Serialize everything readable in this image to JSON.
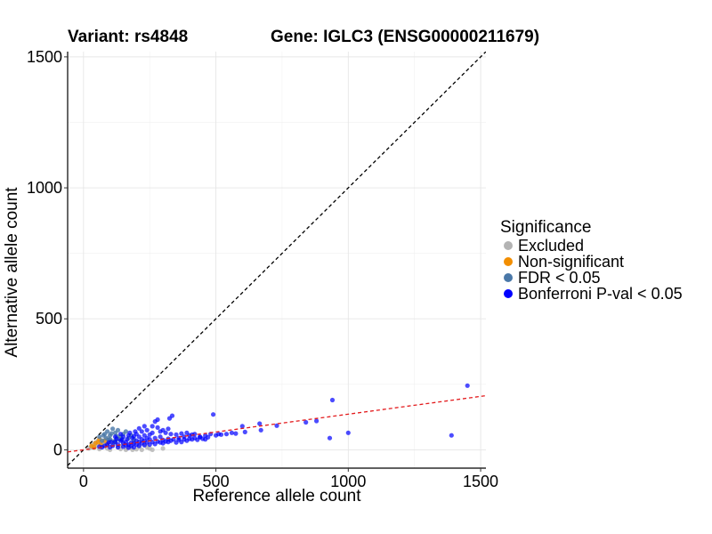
{
  "chart_data": {
    "type": "scatter",
    "title_left": "Variant: rs4848",
    "title_right": "Gene: IGLC3 (ENSG00000211679)",
    "xlabel": "Reference allele count",
    "ylabel": "Alternative allele count",
    "xlim": [
      -60,
      1520
    ],
    "ylim": [
      -70,
      1520
    ],
    "xticks": [
      0,
      500,
      1000,
      1500
    ],
    "yticks": [
      0,
      500,
      1000,
      1500
    ],
    "grid": true,
    "legend": {
      "title": "Significance",
      "position": "right",
      "entries": [
        {
          "label": "Excluded",
          "color": "#b3b3b3"
        },
        {
          "label": "Non-significant",
          "color": "#f28e00"
        },
        {
          "label": "FDR < 0.05",
          "color": "#4a78a8"
        },
        {
          "label": "Bonferroni P-val < 0.05",
          "color": "#0000ff"
        }
      ]
    },
    "reference_lines": [
      {
        "name": "identity",
        "slope": 1,
        "intercept": 0,
        "color": "#000000",
        "style": "dashed"
      },
      {
        "name": "fit",
        "slope": 0.136,
        "intercept": 0,
        "color": "#e31a1c",
        "style": "dashed"
      }
    ],
    "series": [
      {
        "name": "Excluded",
        "color": "#b3b3b3",
        "points": [
          [
            20,
            5
          ],
          [
            30,
            10
          ],
          [
            40,
            8
          ],
          [
            50,
            15
          ],
          [
            60,
            3
          ],
          [
            70,
            12
          ],
          [
            80,
            20
          ],
          [
            90,
            5
          ],
          [
            100,
            0
          ],
          [
            110,
            18
          ],
          [
            120,
            25
          ],
          [
            130,
            10
          ],
          [
            140,
            3
          ],
          [
            150,
            22
          ],
          [
            160,
            0
          ],
          [
            170,
            15
          ],
          [
            180,
            8
          ],
          [
            190,
            28
          ],
          [
            200,
            2
          ],
          [
            210,
            12
          ],
          [
            220,
            0
          ],
          [
            230,
            20
          ],
          [
            250,
            5
          ],
          [
            260,
            0
          ],
          [
            300,
            5
          ],
          [
            35,
            20
          ],
          [
            45,
            28
          ],
          [
            55,
            35
          ],
          [
            65,
            30
          ],
          [
            85,
            40
          ],
          [
            95,
            45
          ],
          [
            105,
            35
          ],
          [
            125,
            45
          ],
          [
            75,
            25
          ],
          [
            145,
            15
          ],
          [
            165,
            5
          ],
          [
            185,
            0
          ],
          [
            240,
            10
          ]
        ]
      },
      {
        "name": "Non-significant",
        "color": "#f28e00",
        "points": [
          [
            30,
            15
          ],
          [
            45,
            25
          ],
          [
            55,
            30
          ],
          [
            65,
            20
          ],
          [
            80,
            35
          ],
          [
            90,
            22
          ],
          [
            60,
            40
          ],
          [
            40,
            10
          ]
        ]
      },
      {
        "name": "FDR < 0.05",
        "color": "#4a78a8",
        "points": [
          [
            60,
            50
          ],
          [
            80,
            60
          ],
          [
            90,
            70
          ],
          [
            100,
            55
          ],
          [
            110,
            80
          ],
          [
            120,
            65
          ],
          [
            130,
            75
          ],
          [
            140,
            50
          ],
          [
            150,
            60
          ],
          [
            160,
            70
          ],
          [
            170,
            45
          ],
          [
            180,
            55
          ],
          [
            190,
            40
          ],
          [
            100,
            40
          ],
          [
            120,
            35
          ],
          [
            75,
            55
          ],
          [
            85,
            45
          ],
          [
            95,
            38
          ],
          [
            115,
            30
          ],
          [
            135,
            40
          ],
          [
            70,
            35
          ],
          [
            105,
            62
          ],
          [
            125,
            52
          ],
          [
            145,
            42
          ]
        ]
      },
      {
        "name": "Bonferroni P-val < 0.05",
        "color": "#0000ff",
        "points": [
          [
            1450,
            245
          ],
          [
            940,
            190
          ],
          [
            335,
            130
          ],
          [
            325,
            120
          ],
          [
            490,
            135
          ],
          [
            280,
            115
          ],
          [
            270,
            108
          ],
          [
            665,
            100
          ],
          [
            730,
            92
          ],
          [
            880,
            110
          ],
          [
            840,
            105
          ],
          [
            600,
            90
          ],
          [
            1000,
            65
          ],
          [
            930,
            45
          ],
          [
            1390,
            55
          ],
          [
            670,
            75
          ],
          [
            560,
            65
          ],
          [
            510,
            60
          ],
          [
            480,
            60
          ],
          [
            460,
            55
          ],
          [
            440,
            50
          ],
          [
            420,
            60
          ],
          [
            400,
            55
          ],
          [
            380,
            50
          ],
          [
            360,
            45
          ],
          [
            340,
            40
          ],
          [
            320,
            42
          ],
          [
            300,
            38
          ],
          [
            290,
            50
          ],
          [
            270,
            45
          ],
          [
            250,
            40
          ],
          [
            230,
            35
          ],
          [
            210,
            30
          ],
          [
            190,
            25
          ],
          [
            170,
            20
          ],
          [
            150,
            25
          ],
          [
            130,
            20
          ],
          [
            110,
            15
          ],
          [
            100,
            10
          ],
          [
            90,
            20
          ],
          [
            80,
            15
          ],
          [
            70,
            10
          ],
          [
            60,
            12
          ],
          [
            120,
            30
          ],
          [
            140,
            35
          ],
          [
            160,
            30
          ],
          [
            180,
            28
          ],
          [
            200,
            35
          ],
          [
            220,
            40
          ],
          [
            240,
            45
          ],
          [
            260,
            30
          ],
          [
            280,
            32
          ],
          [
            300,
            25
          ],
          [
            320,
            30
          ],
          [
            350,
            28
          ],
          [
            370,
            30
          ],
          [
            390,
            35
          ],
          [
            410,
            40
          ],
          [
            430,
            38
          ],
          [
            450,
            42
          ],
          [
            470,
            48
          ],
          [
            500,
            55
          ],
          [
            520,
            58
          ],
          [
            540,
            60
          ],
          [
            575,
            62
          ],
          [
            610,
            68
          ],
          [
            200,
            60
          ],
          [
            220,
            70
          ],
          [
            240,
            75
          ],
          [
            260,
            65
          ],
          [
            210,
            50
          ],
          [
            230,
            55
          ],
          [
            250,
            58
          ],
          [
            185,
            45
          ],
          [
            165,
            40
          ],
          [
            145,
            38
          ],
          [
            125,
            42
          ],
          [
            105,
            30
          ],
          [
            95,
            28
          ],
          [
            130,
            10
          ],
          [
            150,
            12
          ],
          [
            170,
            8
          ],
          [
            190,
            10
          ],
          [
            210,
            15
          ],
          [
            230,
            18
          ],
          [
            250,
            20
          ],
          [
            270,
            22
          ],
          [
            290,
            28
          ],
          [
            310,
            32
          ],
          [
            330,
            35
          ],
          [
            360,
            38
          ],
          [
            380,
            40
          ],
          [
            400,
            42
          ],
          [
            420,
            45
          ],
          [
            440,
            48
          ],
          [
            460,
            40
          ],
          [
            150,
            50
          ],
          [
            170,
            55
          ],
          [
            190,
            52
          ],
          [
            175,
            65
          ],
          [
            195,
            70
          ],
          [
            140,
            60
          ],
          [
            120,
            50
          ],
          [
            160,
            18
          ],
          [
            180,
            15
          ],
          [
            200,
            20
          ],
          [
            220,
            25
          ],
          [
            240,
            28
          ],
          [
            210,
            82
          ],
          [
            230,
            90
          ],
          [
            290,
            70
          ],
          [
            310,
            65
          ],
          [
            330,
            60
          ],
          [
            350,
            58
          ],
          [
            370,
            62
          ],
          [
            390,
            65
          ],
          [
            410,
            58
          ],
          [
            260,
            90
          ],
          [
            280,
            85
          ],
          [
            300,
            75
          ],
          [
            320,
            80
          ]
        ]
      }
    ]
  }
}
